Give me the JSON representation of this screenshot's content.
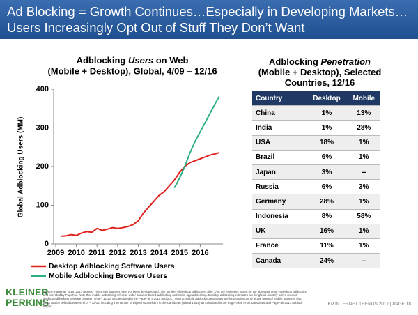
{
  "header": {
    "title_lines": [
      "Ad Blocking = Growth Continues…Especially in Developing Markets…",
      "Users Increasingly Opt Out of Stuff They Don’t Want"
    ]
  },
  "chart_data": {
    "type": "line",
    "title_parts": [
      "Adblocking",
      "Users",
      "on Web",
      "(Mobile + Desktop), Global, 4/09 – 12/16"
    ],
    "y_label": "Global Adblocking Users (MM)",
    "x": [
      2009.25,
      2009.5,
      2009.75,
      2010,
      2010.25,
      2010.5,
      2010.75,
      2011,
      2011.25,
      2011.5,
      2011.75,
      2012,
      2012.25,
      2012.5,
      2012.75,
      2013,
      2013.25,
      2013.5,
      2013.75,
      2014,
      2014.25,
      2014.5,
      2014.75,
      2015,
      2015.25,
      2015.5,
      2015.75,
      2016,
      2016.25,
      2016.5,
      2016.75,
      2016.92
    ],
    "series": [
      {
        "name": "Desktop Adblocking Software Users",
        "color": "#e0201b",
        "values": [
          20,
          21,
          24,
          22,
          28,
          32,
          30,
          40,
          35,
          38,
          42,
          40,
          42,
          45,
          50,
          60,
          80,
          95,
          110,
          125,
          135,
          150,
          165,
          185,
          200,
          210,
          215,
          220,
          225,
          230,
          233,
          236
        ]
      },
      {
        "name": "Mobile Adblocking Browser Users",
        "color": "#2bb07f",
        "values": [
          null,
          null,
          null,
          null,
          null,
          null,
          null,
          null,
          null,
          null,
          null,
          null,
          null,
          null,
          null,
          null,
          null,
          null,
          null,
          null,
          null,
          null,
          145,
          170,
          200,
          235,
          265,
          290,
          315,
          340,
          365,
          381
        ]
      }
    ],
    "xlim": [
      2008.9,
      2017.1
    ],
    "xticks": [
      2009,
      2010,
      2011,
      2012,
      2013,
      2014,
      2015,
      2016
    ],
    "ylim": [
      0,
      400
    ],
    "yticks": [
      0,
      100,
      200,
      300,
      400
    ]
  },
  "table": {
    "title_parts": [
      "Adblocking",
      "Penetration",
      "(Mobile + Desktop), Selected",
      "Countries, 12/16"
    ],
    "columns": [
      "Country",
      "Desktop",
      "Mobile"
    ],
    "rows": [
      [
        "China",
        "1%",
        "13%"
      ],
      [
        "India",
        "1%",
        "28%"
      ],
      [
        "USA",
        "18%",
        "1%"
      ],
      [
        "Brazil",
        "6%",
        "1%"
      ],
      [
        "Japan",
        "3%",
        "--"
      ],
      [
        "Russia",
        "6%",
        "3%"
      ],
      [
        "Germany",
        "28%",
        "1%"
      ],
      [
        "Indonesia",
        "8%",
        "58%"
      ],
      [
        "UK",
        "16%",
        "1%"
      ],
      [
        "France",
        "11%",
        "1%"
      ],
      [
        "Canada",
        "24%",
        "--"
      ]
    ]
  },
  "footer": {
    "logo": [
      "KLEINER",
      "PERKINS"
    ],
    "source": "Source: PageFair 2015, 2017 reports. These two datasets have not been de-duplicated. The number of desktop adblockers after 1/16 are estimates based on the observed trend in desktop adblocking and provided by PageFair. Note that mobile adblocking refers to web / browser-based adblocking and not in-app adblocking. Desktop adblocking estimates are for global monthly active users of desktop adblocking software between 4/09 – 12/16, as calculated in the PageFair's 2015 and 2017 reports. Mobile adblocking estimates are for global monthly active users of mobile browsers that block ads by default between 9/14 – 12/16, including the number of Digicel subscribers in the Caribbean (added 10/15) as calculated in the PageFair & Priori Data 2016 and PageFair 2017 Adblock Report.",
    "page": "KP INTERNET TRENDS 2017 | PAGE 18"
  }
}
